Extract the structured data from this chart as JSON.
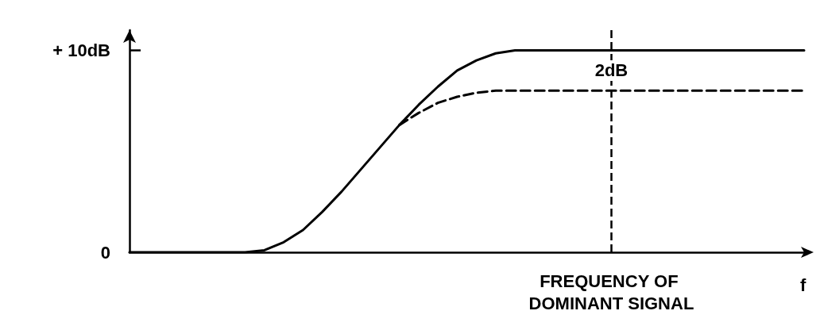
{
  "chart_data": {
    "type": "line",
    "categories": [
      null,
      null,
      null,
      null,
      null,
      null,
      null,
      null,
      null,
      null,
      null,
      null,
      null,
      null,
      null,
      null,
      null,
      null,
      null,
      null,
      null,
      null,
      null,
      null,
      null,
      "FREQUENCY OF DOMINANT SIGNAL",
      null,
      null,
      null,
      null,
      null,
      null,
      null,
      null,
      null,
      null
    ],
    "series": [
      {
        "color": "#000000",
        "line_style": "solid",
        "values": [
          0,
          0,
          0,
          0,
          0,
          0,
          0,
          0.1,
          0.5,
          1.1,
          2,
          3,
          4.1,
          5.2,
          6.3,
          7.3,
          8.2,
          9,
          9.5,
          9.85,
          10,
          10,
          10,
          10,
          10,
          10,
          10,
          10,
          10,
          10,
          10,
          10,
          10,
          10,
          10,
          10
        ]
      },
      {
        "color": "#000000",
        "line_style": "dashed",
        "values": [
          null,
          null,
          null,
          null,
          null,
          null,
          null,
          null,
          null,
          null,
          null,
          null,
          null,
          null,
          6.3,
          6.9,
          7.4,
          7.7,
          7.9,
          8,
          8,
          8,
          8,
          8,
          8,
          8,
          8,
          8,
          8,
          8,
          8,
          8,
          8,
          8,
          8,
          8
        ]
      }
    ],
    "xlabel": "f",
    "ylim": [
      0,
      11
    ],
    "yticks": [
      0,
      {
        "value": 10,
        "label": "+ 10dB"
      }
    ],
    "ref_lines": [
      {
        "axis": "x",
        "value": "FREQUENCY OF DOMINANT SIGNAL",
        "color": "#000000",
        "line_style": "dashed"
      }
    ],
    "annotations": [
      {
        "text": "2dB",
        "x": "FREQUENCY OF DOMINANT SIGNAL",
        "y": 9
      }
    ],
    "marker": "none",
    "grid": false
  }
}
